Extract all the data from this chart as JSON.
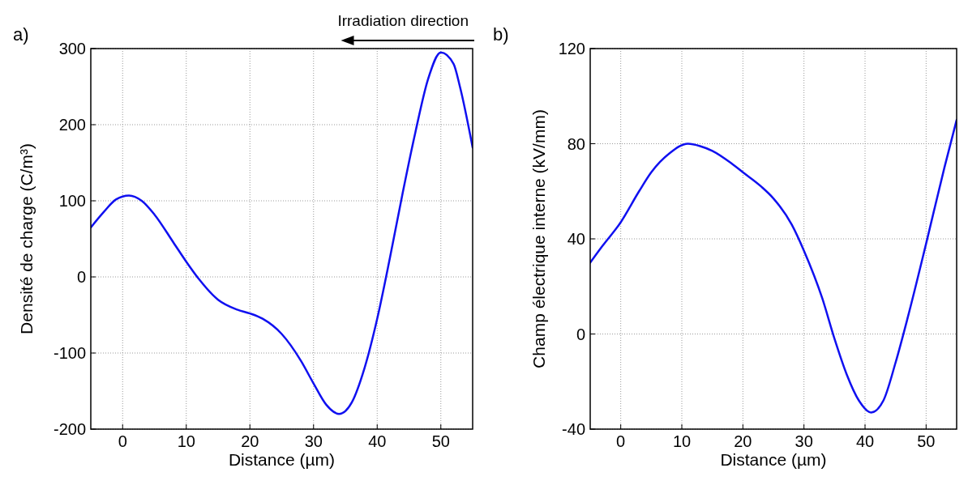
{
  "chart_data": [
    {
      "type": "line",
      "xlabel": "Distance (µm)",
      "ylabel": "Densité de charge (C/m³)",
      "annotations": [
        "a)",
        "Irradiation direction"
      ],
      "x": [
        -5,
        -3,
        -1,
        1,
        3,
        5,
        8,
        10,
        12,
        15,
        18,
        20,
        22,
        25,
        28,
        30,
        32,
        34,
        36,
        38,
        40,
        42,
        44,
        46,
        48,
        50,
        52,
        53,
        55
      ],
      "series": [
        {
          "color": "#1010f0",
          "values": [
            65,
            85,
            102,
            107,
            100,
            82,
            45,
            20,
            -3,
            -30,
            -43,
            -48,
            -55,
            -75,
            -110,
            -140,
            -168,
            -180,
            -165,
            -120,
            -55,
            25,
            110,
            190,
            260,
            295,
            280,
            250,
            170
          ]
        }
      ],
      "xlim": [
        -5,
        55
      ],
      "xticks": [
        0,
        10,
        20,
        30,
        40,
        50
      ],
      "ylim": [
        -200,
        300
      ],
      "yticks": [
        -200,
        -100,
        0,
        100,
        200,
        300
      ],
      "grid": true
    },
    {
      "type": "line",
      "xlabel": "Distance (µm)",
      "ylabel": "Champ électrique interne (kV/mm)",
      "annotations": [
        "b)"
      ],
      "x": [
        -5,
        -3,
        0,
        3,
        5,
        8,
        11,
        13,
        15,
        18,
        20,
        23,
        25,
        28,
        30,
        33,
        35,
        37,
        39,
        41,
        43,
        45,
        47,
        50,
        53,
        55
      ],
      "series": [
        {
          "color": "#1010f0",
          "values": [
            30,
            37,
            47,
            60,
            68,
            76,
            80,
            79,
            77,
            72,
            68,
            62,
            57,
            46,
            35,
            15,
            -2,
            -17,
            -28,
            -33,
            -28,
            -12,
            7,
            38,
            70,
            90
          ]
        }
      ],
      "xlim": [
        -5,
        55
      ],
      "xticks": [
        0,
        10,
        20,
        30,
        40,
        50
      ],
      "ylim": [
        -40,
        120
      ],
      "yticks": [
        -40,
        0,
        40,
        80,
        120
      ],
      "grid": true
    }
  ]
}
